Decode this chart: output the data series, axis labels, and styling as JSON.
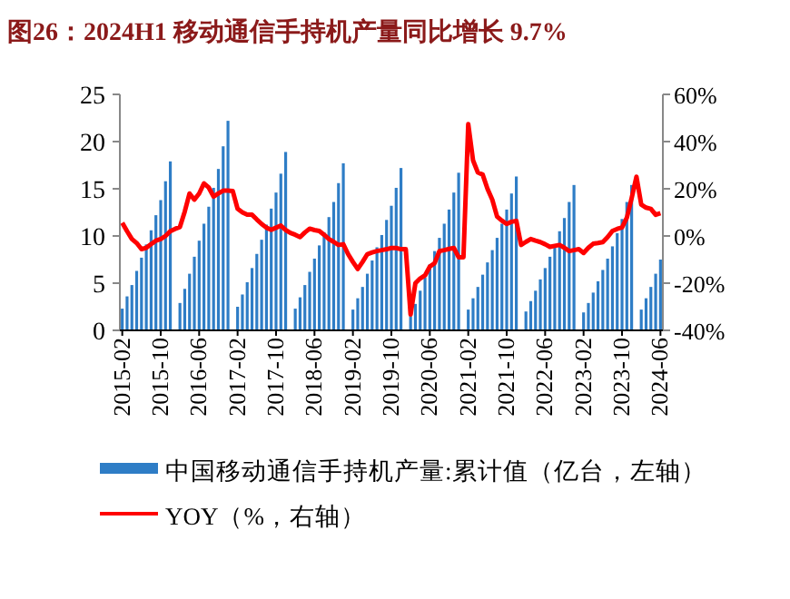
{
  "chart_data": {
    "type": "bar",
    "title": "图26：2024H1 移动通信手持机产量同比增长 9.7%",
    "categories": [
      "2015-02",
      null,
      null,
      null,
      null,
      null,
      null,
      null,
      "2015-10",
      null,
      null,
      null,
      null,
      null,
      null,
      null,
      "2016-06",
      null,
      null,
      null,
      null,
      null,
      null,
      null,
      "2017-02",
      null,
      null,
      null,
      null,
      null,
      null,
      null,
      "2017-10",
      null,
      null,
      null,
      null,
      null,
      null,
      null,
      "2018-06",
      null,
      null,
      null,
      null,
      null,
      null,
      null,
      "2019-02",
      null,
      null,
      null,
      null,
      null,
      null,
      null,
      "2019-10",
      null,
      null,
      null,
      null,
      null,
      null,
      null,
      "2020-06",
      null,
      null,
      null,
      null,
      null,
      null,
      null,
      "2021-02",
      null,
      null,
      null,
      null,
      null,
      null,
      null,
      "2021-10",
      null,
      null,
      null,
      null,
      null,
      null,
      null,
      "2022-06",
      null,
      null,
      null,
      null,
      null,
      null,
      null,
      "2023-02",
      null,
      null,
      null,
      null,
      null,
      null,
      null,
      "2023-10",
      null,
      null,
      null,
      null,
      null,
      null,
      null,
      "2024-06"
    ],
    "series": [
      {
        "name": "中国移动通信手持机产量:累计值（亿台，左轴）",
        "color": "#2e7dc6",
        "values": [
          2.3,
          3.6,
          4.8,
          6.3,
          7.7,
          9.1,
          10.6,
          12.2,
          13.8,
          15.8,
          17.9,
          null,
          2.9,
          4.4,
          6.0,
          7.8,
          9.5,
          11.3,
          13.1,
          15.1,
          17.1,
          19.5,
          22.2,
          null,
          2.5,
          3.8,
          5.1,
          6.6,
          8.1,
          9.6,
          11.2,
          12.9,
          14.6,
          16.6,
          18.9,
          null,
          2.3,
          3.5,
          4.8,
          6.2,
          7.6,
          9.0,
          10.4,
          12.0,
          13.6,
          15.6,
          17.7,
          null,
          2.2,
          3.4,
          4.6,
          6.0,
          7.4,
          8.8,
          10.1,
          11.7,
          13.2,
          15.1,
          17.2,
          null,
          1.5,
          2.8,
          4.2,
          5.6,
          7.0,
          8.4,
          9.8,
          11.3,
          12.8,
          14.6,
          16.7,
          null,
          2.2,
          3.4,
          4.6,
          5.9,
          7.2,
          8.5,
          9.8,
          11.3,
          12.8,
          14.5,
          16.3,
          null,
          2.0,
          3.1,
          4.2,
          5.4,
          6.6,
          7.8,
          9.1,
          10.5,
          11.9,
          13.6,
          15.4,
          null,
          1.9,
          2.9,
          4.0,
          5.2,
          6.4,
          7.6,
          8.9,
          10.3,
          11.8,
          13.6,
          15.4,
          null,
          2.2,
          3.4,
          4.6,
          6.0,
          7.5
        ]
      },
      {
        "name": "YOY（%，右轴）",
        "type": "line",
        "axis": "y2",
        "color": "#ff0000",
        "values": [
          5.6,
          2,
          -1.3,
          -3,
          -5.6,
          -5,
          -3.5,
          -2,
          -1.3,
          0,
          2,
          3,
          3.8,
          10.3,
          18,
          15.4,
          18,
          22.3,
          20.5,
          16.7,
          18,
          19.2,
          19.2,
          19,
          11.5,
          10,
          9,
          9,
          7,
          5.1,
          3.5,
          2.6,
          3.5,
          4.4,
          2.5,
          1.3,
          0.5,
          -0.5,
          1.5,
          3.1,
          2.5,
          2.1,
          0.5,
          -1.3,
          -2.5,
          -3.8,
          -3.5,
          -7.7,
          -11,
          -14,
          -11,
          -7.7,
          -7,
          -6.4,
          -6,
          -5.6,
          -5.1,
          -5.1,
          -5.6,
          -5.6,
          -33.3,
          -20,
          -18,
          -16.7,
          -13,
          -11.5,
          -6.4,
          -6,
          -5.5,
          -5.1,
          -9,
          -9,
          47.4,
          32,
          26.9,
          26,
          20,
          15.4,
          8.2,
          6.5,
          5.1,
          6,
          6.4,
          -3.8,
          -2.5,
          -1.3,
          -2,
          -2.6,
          -3.5,
          -4.6,
          -4.2,
          -3.8,
          -5,
          -6.4,
          -6,
          -5.6,
          -7.2,
          -5,
          -3.3,
          -3,
          -2.6,
          -0.5,
          2.1,
          3,
          3.6,
          7.7,
          16,
          25.1,
          13.3,
          12,
          11.5,
          9,
          9.7
        ]
      }
    ],
    "ylim": [
      0,
      25
    ],
    "yticks": [
      0,
      5,
      10,
      15,
      20,
      25
    ],
    "y2lim": [
      -40,
      60
    ],
    "y2ticks": [
      {
        "value": -40,
        "label": "-40%"
      },
      {
        "value": -20,
        "label": "-20%"
      },
      {
        "value": 0,
        "label": "0%"
      },
      {
        "value": 20,
        "label": "20%"
      },
      {
        "value": 40,
        "label": "40%"
      },
      {
        "value": 60,
        "label": "60%"
      }
    ],
    "grid": false,
    "legend": "bottom",
    "line_style": "solid",
    "marker": "none"
  }
}
